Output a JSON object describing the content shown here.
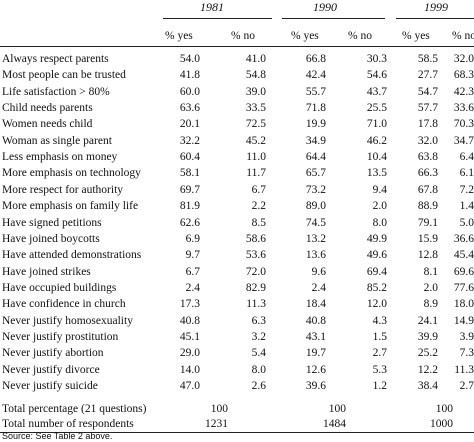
{
  "table": {
    "years": [
      "1981",
      "1990",
      "1999"
    ],
    "col_headers": [
      "% yes",
      "% no"
    ],
    "rows": [
      {
        "label": "Always respect parents",
        "v": [
          "54.0",
          "41.0",
          "66.8",
          "30.3",
          "58.5",
          "32.0"
        ]
      },
      {
        "label": "Most people can be trusted",
        "v": [
          "41.8",
          "54.8",
          "42.4",
          "54.6",
          "27.7",
          "68.3"
        ]
      },
      {
        "label": "Life satisfaction > 80%",
        "v": [
          "60.0",
          "39.0",
          "55.7",
          "43.7",
          "54.7",
          "42.3"
        ]
      },
      {
        "label": "Child needs parents",
        "v": [
          "63.6",
          "33.5",
          "71.8",
          "25.5",
          "57.7",
          "33.6"
        ]
      },
      {
        "label": "Women needs child",
        "v": [
          "20.1",
          "72.5",
          "19.9",
          "71.0",
          "17.8",
          "70.3"
        ]
      },
      {
        "label": "Woman as single parent",
        "v": [
          "32.2",
          "45.2",
          "34.9",
          "46.2",
          "32.0",
          "34.7"
        ]
      },
      {
        "label": "Less emphasis on money",
        "v": [
          "60.4",
          "11.0",
          "64.4",
          "10.4",
          "63.8",
          "6.4"
        ]
      },
      {
        "label": "More emphasis on technology",
        "v": [
          "58.1",
          "11.7",
          "65.7",
          "13.5",
          "66.3",
          "6.1"
        ]
      },
      {
        "label": "More respect for authority",
        "v": [
          "69.7",
          "6.7",
          "73.2",
          "9.4",
          "67.8",
          "7.2"
        ]
      },
      {
        "label": "More emphasis on family life",
        "v": [
          "81.9",
          "2.2",
          "89.0",
          "2.0",
          "88.9",
          "1.4"
        ]
      },
      {
        "label": "Have signed petitions",
        "v": [
          "62.6",
          "8.5",
          "74.5",
          "8.0",
          "79.1",
          "5.0"
        ]
      },
      {
        "label": "Have joined boycotts",
        "v": [
          "6.9",
          "58.6",
          "13.2",
          "49.9",
          "15.9",
          "36.6"
        ]
      },
      {
        "label": "Have attended demonstrations",
        "v": [
          "9.7",
          "53.6",
          "13.6",
          "49.6",
          "12.8",
          "45.4"
        ]
      },
      {
        "label": "Have joined strikes",
        "v": [
          "6.7",
          "72.0",
          "9.6",
          "69.4",
          "8.1",
          "69.6"
        ]
      },
      {
        "label": "Have occupied buildings",
        "v": [
          "2.4",
          "82.9",
          "2.4",
          "85.2",
          "2.0",
          "77.6"
        ]
      },
      {
        "label": "Have confidence in church",
        "v": [
          "17.3",
          "11.3",
          "18.4",
          "12.0",
          "8.9",
          "18.0"
        ]
      },
      {
        "label": "Never justify homosexuality",
        "v": [
          "40.8",
          "6.3",
          "40.8",
          "4.3",
          "24.1",
          "14.9"
        ]
      },
      {
        "label": "Never justify prostitution",
        "v": [
          "45.1",
          "3.2",
          "43.1",
          "1.5",
          "39.9",
          "3.9"
        ]
      },
      {
        "label": "Never justify abortion",
        "v": [
          "29.0",
          "5.4",
          "19.7",
          "2.7",
          "25.2",
          "7.3"
        ]
      },
      {
        "label": "Never justify divorce",
        "v": [
          "14.0",
          "8.0",
          "12.6",
          "5.3",
          "12.2",
          "11.3"
        ]
      },
      {
        "label": "Never justify suicide",
        "v": [
          "47.0",
          "2.6",
          "39.6",
          "1.2",
          "38.4",
          "2.7"
        ]
      }
    ],
    "total_percentage": {
      "label": "Total percentage (21 questions)",
      "values": [
        "100",
        "100",
        "100"
      ]
    },
    "total_respondents": {
      "label": "Total number of respondents",
      "values": [
        "1231",
        "1484",
        "1000"
      ]
    }
  },
  "source": "Source: See Table 2 above."
}
